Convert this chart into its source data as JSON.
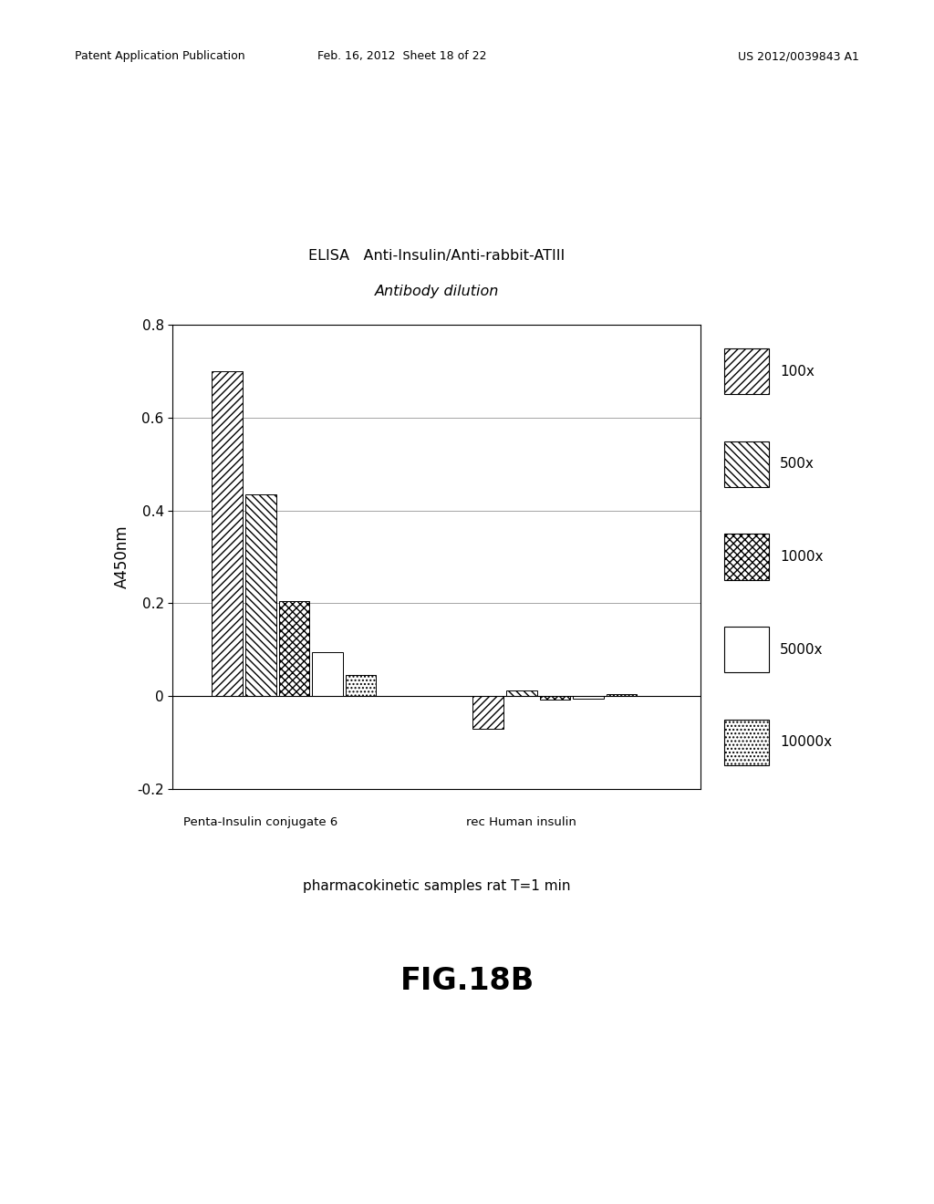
{
  "title_line1": "ELISA   Anti-Insulin/Anti-rabbit-ATIII",
  "title_line2": "Antibody dilution",
  "ylabel": "A450nm",
  "xlabel": "pharmacokinetic samples rat T=1 min",
  "fig_label": "FIG.18B",
  "ylim": [
    -0.2,
    0.8
  ],
  "yticks": [
    -0.2,
    0,
    0.2,
    0.4,
    0.6,
    0.8
  ],
  "groups": [
    "Penta-Insulin conjugate 6",
    "rec Human insulin"
  ],
  "series_labels": [
    "100x",
    "500x",
    "1000x",
    "5000x",
    "10000x"
  ],
  "values": {
    "Penta-Insulin conjugate 6": [
      0.7,
      0.435,
      0.205,
      0.095,
      0.045
    ],
    "rec Human insulin": [
      -0.07,
      0.012,
      -0.008,
      -0.005,
      0.003
    ]
  },
  "bar_width": 0.055,
  "group_centers": [
    0.25,
    0.68
  ],
  "header_text_left": "Patent Application Publication",
  "header_text_mid": "Feb. 16, 2012  Sheet 18 of 22",
  "header_text_right": "US 2012/0039843 A1"
}
